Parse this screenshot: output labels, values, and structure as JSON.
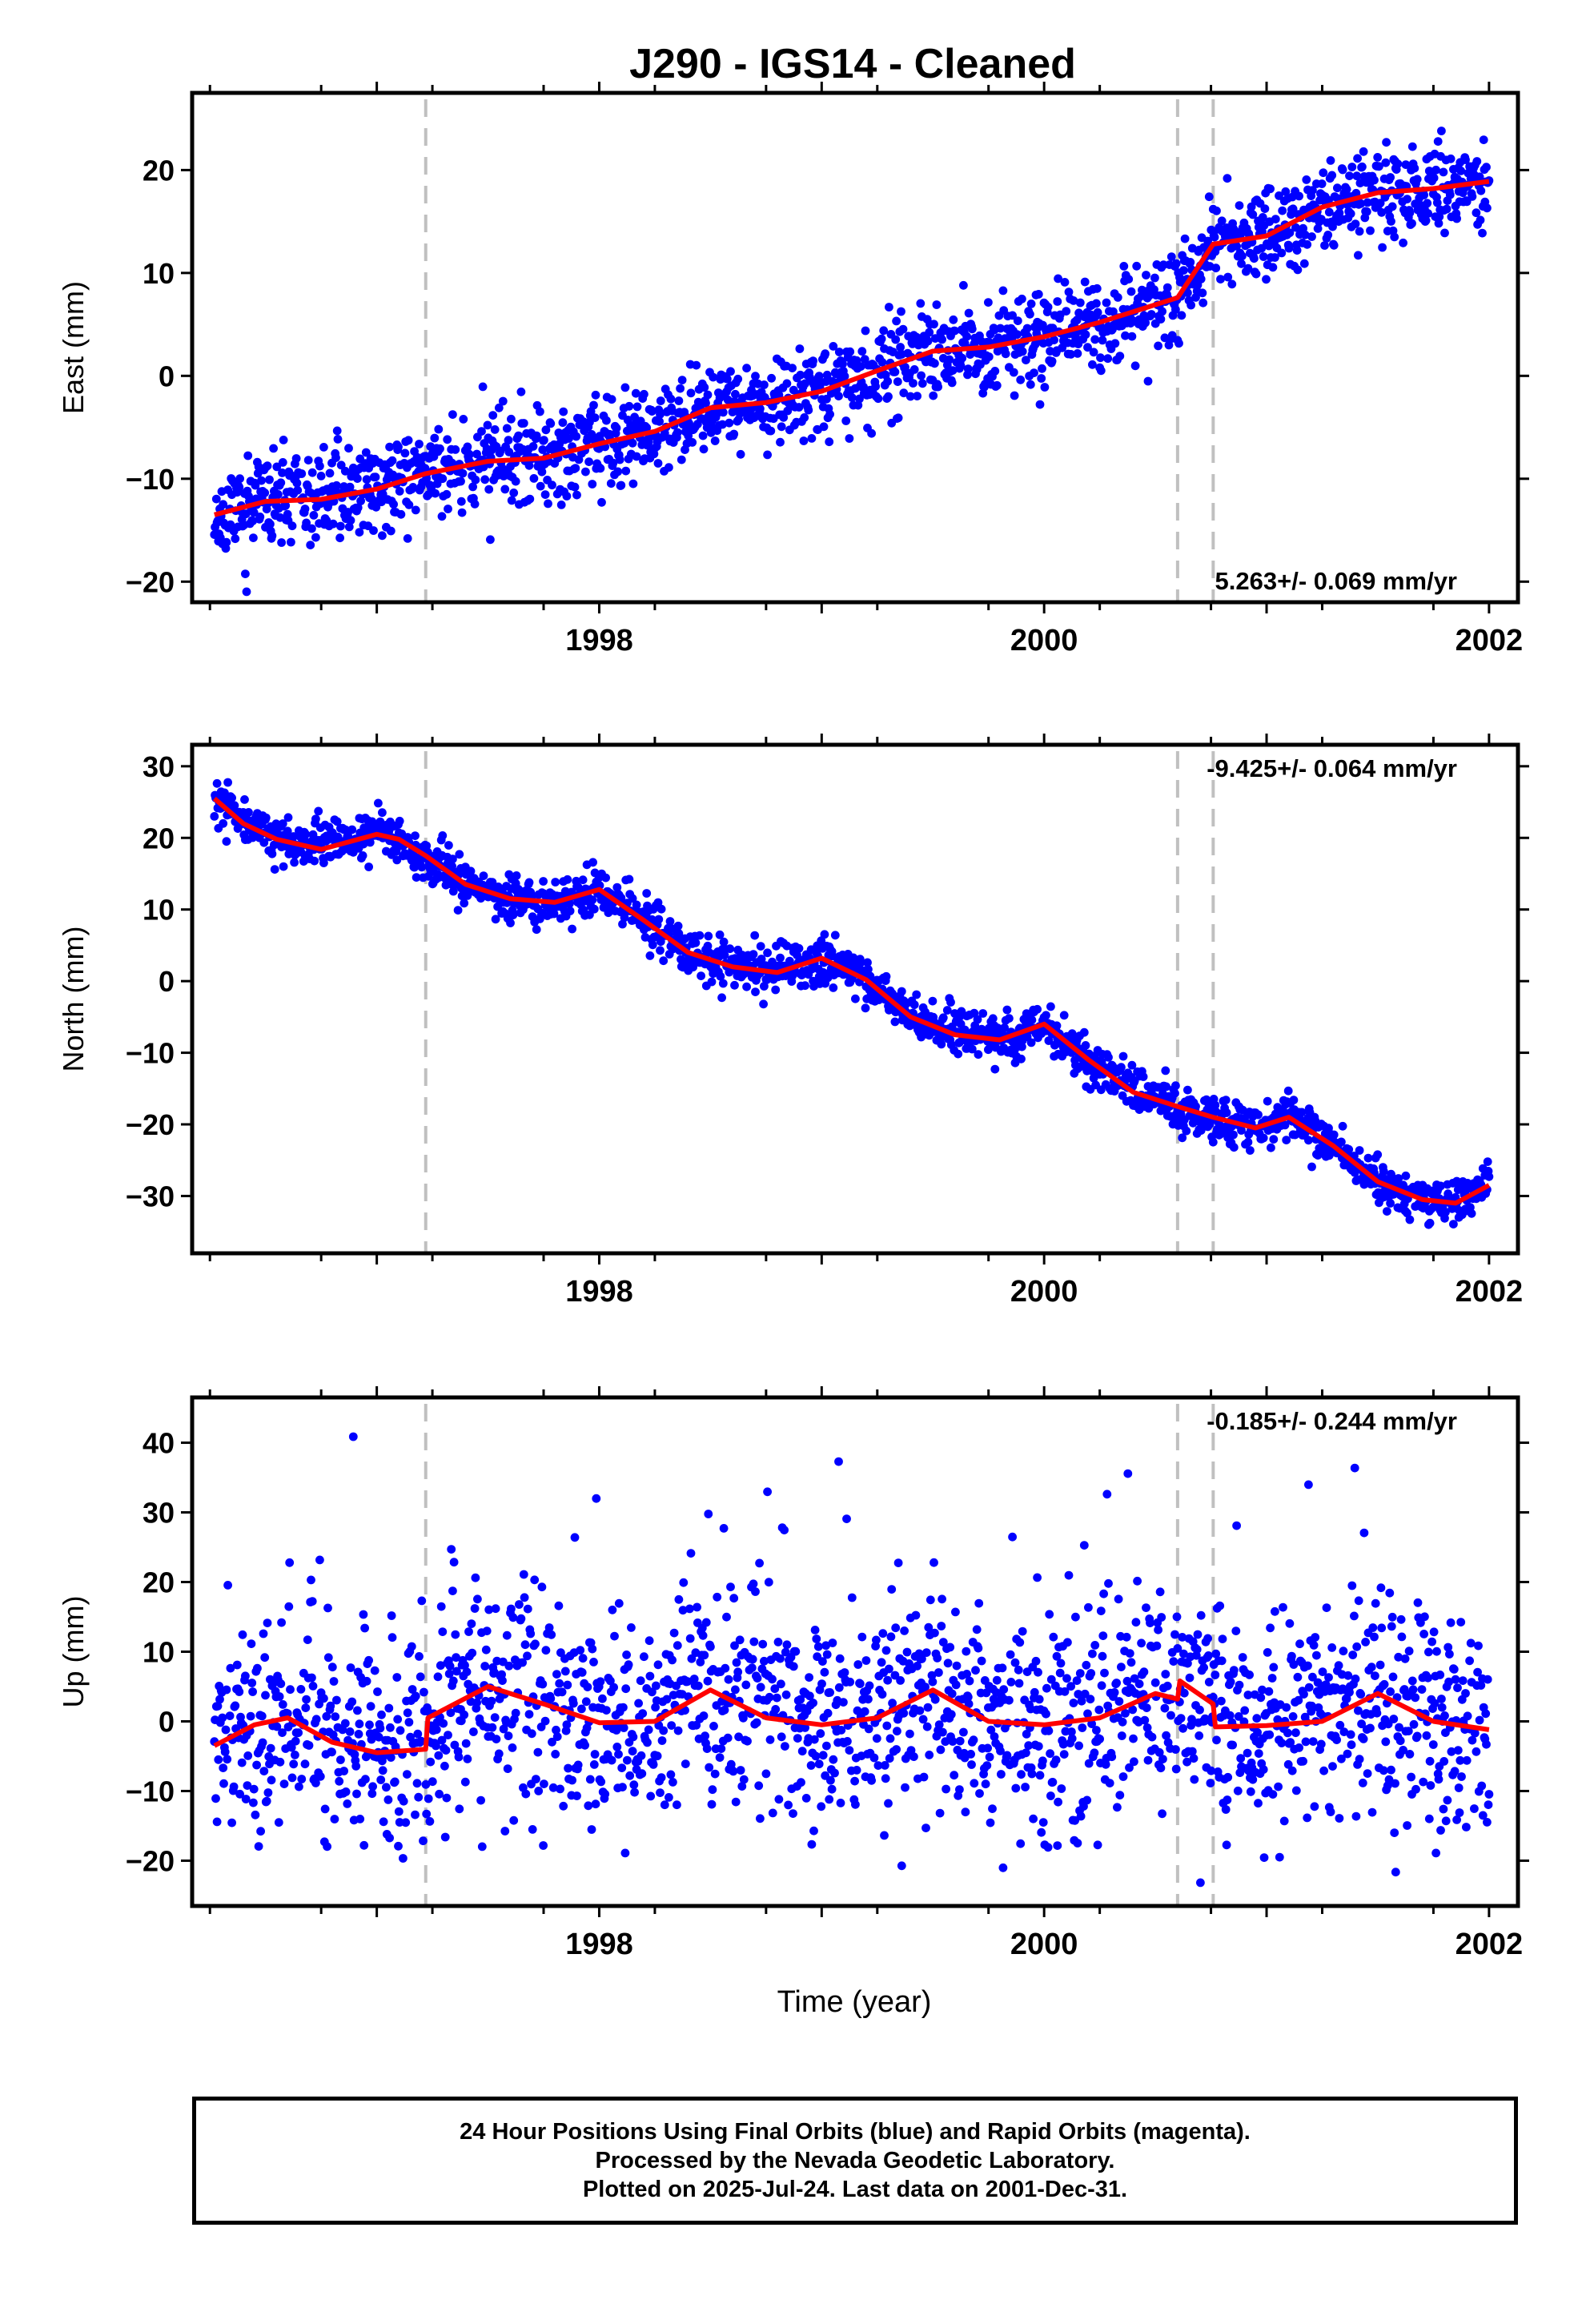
{
  "title": "J290  - IGS14 - Cleaned",
  "xlabel": "Time (year)",
  "footer": {
    "line1": "24 Hour Positions Using Final Orbits (blue) and Rapid Orbits (magenta).",
    "line2": "Processed by the Nevada Geodetic Laboratory.",
    "line3": "Plotted on 2025-Jul-24. Last data on 2001-Dec-31."
  },
  "colors": {
    "final_orbits": "#0000ff",
    "model_fit": "#ff0000",
    "breaks": "#c0c0c0",
    "axes": "#000000"
  },
  "chart_data": [
    {
      "type": "scatter",
      "ylabel": "East (mm)",
      "xlim": [
        1996.17,
        2002.13
      ],
      "ylim": [
        -22,
        27.5
      ],
      "yticks": [
        -20,
        -10,
        0,
        10,
        20
      ],
      "xticks": [
        1998,
        2000,
        2002
      ],
      "rate_label": "5.263+/- 0.069 mm/yr",
      "rate_position": "bottom-right",
      "grid": false,
      "break_epochs": [
        1997.22,
        2000.6,
        2000.76
      ],
      "seed": 11,
      "scatter_sigma": 2.2,
      "model": {
        "offset": -13.5,
        "rate": 5.263,
        "t0": 1996.27,
        "annual_amp": 0.9,
        "annual_phase": 0.2,
        "steps": [
          {
            "t": 1997.22,
            "d": 0.6
          },
          {
            "t": 2000.6,
            "d": 2.2
          },
          {
            "t": 2000.76,
            "d": 0.8
          }
        ]
      },
      "series": [
        {
          "name": "Final Orbits",
          "style": "points",
          "x": [
            1996.27,
            1996.5,
            1996.75,
            1997.0,
            1997.22,
            1997.5,
            1997.75,
            1998.0,
            1998.25,
            1998.5,
            1998.75,
            1999.0,
            1999.25,
            1999.5,
            1999.75,
            2000.0,
            2000.25,
            2000.6,
            2000.76,
            2001.0,
            2001.25,
            2001.5,
            2001.75,
            2002.0
          ],
          "y": [
            -13.5,
            -12.2,
            -12.0,
            -11.0,
            -9.5,
            -8.3,
            -8.0,
            -6.6,
            -5.4,
            -3.1,
            -2.6,
            -1.5,
            0.5,
            2.4,
            2.8,
            3.8,
            5.2,
            7.6,
            12.8,
            13.6,
            16.4,
            17.8,
            18.2,
            18.9
          ]
        },
        {
          "name": "Model Fit",
          "style": "line",
          "x": [
            1996.27,
            1996.5,
            1996.75,
            1997.0,
            1997.22,
            1997.5,
            1997.75,
            1998.0,
            1998.25,
            1998.5,
            1998.75,
            1999.0,
            1999.25,
            1999.5,
            1999.75,
            2000.0,
            2000.25,
            2000.6,
            2000.76,
            2001.0,
            2001.25,
            2001.5,
            2001.75,
            2002.0
          ],
          "y": [
            -13.5,
            -12.2,
            -12.0,
            -11.0,
            -9.5,
            -8.3,
            -8.0,
            -6.6,
            -5.4,
            -3.1,
            -2.6,
            -1.5,
            0.5,
            2.4,
            2.8,
            3.8,
            5.2,
            7.6,
            12.8,
            13.6,
            16.4,
            17.8,
            18.2,
            18.9
          ]
        }
      ]
    },
    {
      "type": "scatter",
      "ylabel": "North (mm)",
      "xlim": [
        1996.17,
        2002.13
      ],
      "ylim": [
        -38,
        33
      ],
      "yticks": [
        -30,
        -20,
        -10,
        0,
        10,
        20,
        30
      ],
      "xticks": [
        1998,
        2000,
        2002
      ],
      "rate_label": "-9.425+/- 0.064 mm/yr",
      "rate_position": "top-right",
      "grid": false,
      "break_epochs": [
        1997.22,
        2000.6,
        2000.76
      ],
      "seed": 23,
      "scatter_sigma": 1.6,
      "series": [
        {
          "name": "Final Orbits",
          "style": "points",
          "x": [
            1996.27,
            1996.4,
            1996.55,
            1996.75,
            1997.0,
            1997.1,
            1997.22,
            1997.4,
            1997.6,
            1997.8,
            1998.0,
            1998.2,
            1998.4,
            1998.6,
            1998.8,
            1999.0,
            1999.2,
            1999.4,
            1999.6,
            1999.8,
            2000.0,
            2000.2,
            2000.4,
            2000.6,
            2000.76,
            2000.95,
            2001.1,
            2001.3,
            2001.5,
            2001.7,
            2001.85,
            2002.0
          ],
          "y": [
            25.5,
            22.0,
            19.8,
            18.4,
            20.5,
            19.8,
            17.5,
            13.5,
            11.5,
            11.0,
            12.8,
            8.5,
            4.0,
            2.0,
            1.2,
            3.2,
            0.2,
            -5.0,
            -7.5,
            -8.2,
            -6.0,
            -11.0,
            -15.5,
            -17.5,
            -19.0,
            -20.5,
            -19.0,
            -23.0,
            -28.0,
            -30.5,
            -31.0,
            -28.5
          ]
        },
        {
          "name": "Model Fit",
          "style": "line",
          "x": [
            1996.27,
            1996.4,
            1996.55,
            1996.75,
            1997.0,
            1997.1,
            1997.22,
            1997.4,
            1997.6,
            1997.8,
            1998.0,
            1998.2,
            1998.4,
            1998.6,
            1998.8,
            1999.0,
            1999.2,
            1999.4,
            1999.6,
            1999.8,
            2000.0,
            2000.2,
            2000.4,
            2000.6,
            2000.76,
            2000.95,
            2001.1,
            2001.3,
            2001.5,
            2001.7,
            2001.85,
            2002.0
          ],
          "y": [
            25.5,
            22.0,
            19.8,
            18.4,
            20.5,
            19.8,
            17.5,
            13.5,
            11.5,
            11.0,
            12.8,
            8.5,
            4.0,
            2.0,
            1.2,
            3.2,
            0.2,
            -5.0,
            -7.5,
            -8.2,
            -6.0,
            -11.0,
            -15.5,
            -17.5,
            -19.0,
            -20.5,
            -19.0,
            -23.0,
            -28.0,
            -30.5,
            -31.0,
            -28.5
          ]
        }
      ]
    },
    {
      "type": "scatter",
      "ylabel": "Up (mm)",
      "xlim": [
        1996.17,
        2002.13
      ],
      "ylim": [
        -26.5,
        46.5
      ],
      "yticks": [
        -20,
        -10,
        0,
        10,
        20,
        30,
        40
      ],
      "xticks": [
        1998,
        2000,
        2002
      ],
      "rate_label": "-0.185+/- 0.244 mm/yr",
      "rate_position": "top-right",
      "grid": false,
      "break_epochs": [
        1997.22,
        2000.6,
        2000.76
      ],
      "seed": 37,
      "scatter_sigma": 8.0,
      "series": [
        {
          "name": "Final Orbits",
          "style": "points",
          "x": [
            1996.27,
            1996.45,
            1996.6,
            1996.8,
            1997.0,
            1997.22,
            1997.23,
            1997.5,
            1997.75,
            1998.0,
            1998.25,
            1998.5,
            1998.75,
            1999.0,
            1999.25,
            1999.5,
            1999.75,
            2000.0,
            2000.25,
            2000.5,
            2000.6,
            2000.61,
            2000.76,
            2000.77,
            2001.0,
            2001.25,
            2001.5,
            2001.75,
            2002.0
          ],
          "y": [
            -3.5,
            -0.5,
            0.5,
            -3.0,
            -4.5,
            -4.0,
            0.5,
            5.0,
            2.5,
            -0.2,
            0.0,
            4.5,
            0.5,
            -0.5,
            0.5,
            4.5,
            0.0,
            -0.5,
            0.5,
            4.0,
            3.2,
            5.8,
            2.5,
            -0.8,
            -0.6,
            0.0,
            4.0,
            0.0,
            -1.2
          ]
        },
        {
          "name": "Model Fit",
          "style": "line",
          "x": [
            1996.27,
            1996.45,
            1996.6,
            1996.8,
            1997.0,
            1997.22,
            1997.23,
            1997.5,
            1997.75,
            1998.0,
            1998.25,
            1998.5,
            1998.75,
            1999.0,
            1999.25,
            1999.5,
            1999.75,
            2000.0,
            2000.25,
            2000.5,
            2000.6,
            2000.61,
            2000.76,
            2000.77,
            2001.0,
            2001.25,
            2001.5,
            2001.75,
            2002.0
          ],
          "y": [
            -3.5,
            -0.5,
            0.5,
            -3.0,
            -4.5,
            -4.0,
            0.5,
            5.0,
            2.5,
            -0.2,
            0.0,
            4.5,
            0.5,
            -0.5,
            0.5,
            4.5,
            0.0,
            -0.5,
            0.5,
            4.0,
            3.2,
            5.8,
            2.5,
            -0.8,
            -0.6,
            0.0,
            4.0,
            0.0,
            -1.2
          ]
        }
      ]
    }
  ]
}
